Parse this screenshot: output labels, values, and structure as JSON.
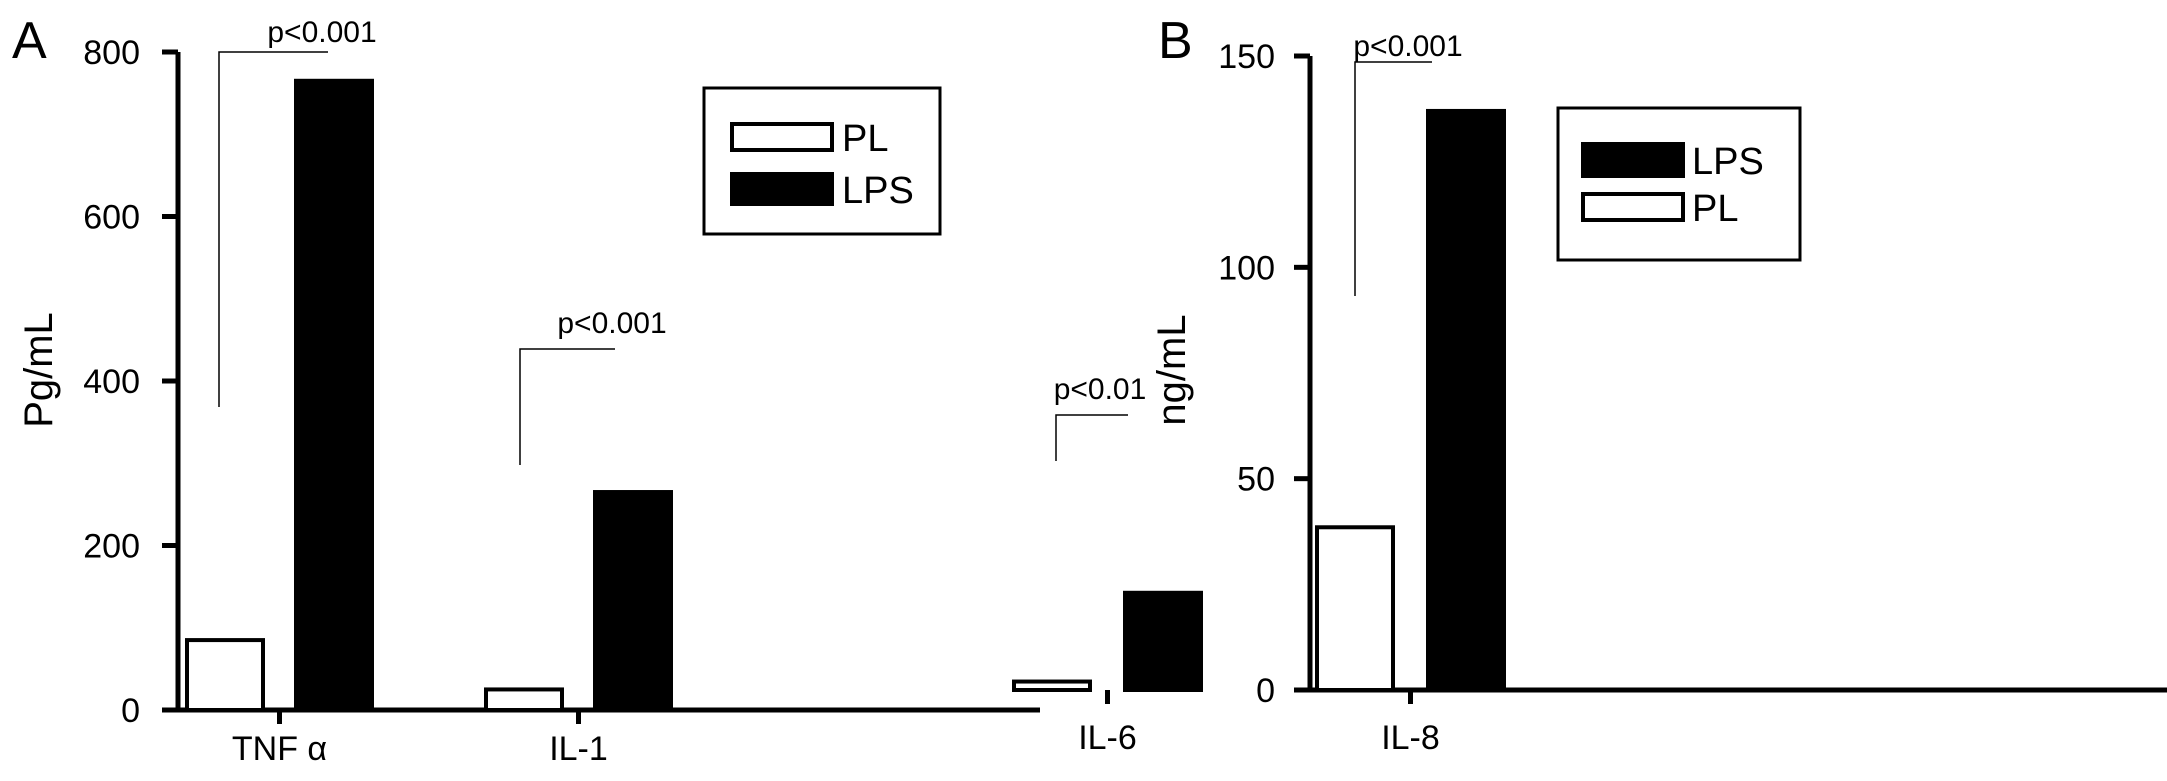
{
  "chart_data": [
    {
      "type": "bar",
      "panel_letter": "A",
      "ylabel": "Pg/mL",
      "xlabel": "",
      "ylim": [
        0,
        800
      ],
      "yticks": [
        "0",
        "200",
        "400",
        "600",
        "800"
      ],
      "categories": [
        "TNF α",
        "IL-1"
      ],
      "series": [
        {
          "name": "PL",
          "values": [
            85,
            25
          ],
          "fill": "#ffffff"
        },
        {
          "name": "LPS",
          "values": [
            765,
            265
          ],
          "fill": "#000000"
        }
      ],
      "legend": {
        "placement": "top-right",
        "order": [
          "PL",
          "LPS"
        ]
      },
      "annotations": [
        "p<0.001",
        "p<0.001"
      ],
      "grid": false
    },
    {
      "type": "bar",
      "panel_letter": "B",
      "ylabel": "ng/mL",
      "xlabel": "",
      "ylim": [
        0,
        150
      ],
      "yticks": [
        "0",
        "50",
        "100",
        "150"
      ],
      "categories": [
        "IL-6",
        "IL-8"
      ],
      "series": [
        {
          "name": "PL",
          "values": [
            2,
            38.5
          ],
          "fill": "#ffffff"
        },
        {
          "name": "LPS",
          "values": [
            23,
            137
          ],
          "fill": "#000000"
        }
      ],
      "legend": {
        "placement": "top-center",
        "order": [
          "LPS",
          "PL"
        ]
      },
      "annotations": [
        "p<0.01",
        "p<0.001"
      ],
      "grid": false
    }
  ]
}
